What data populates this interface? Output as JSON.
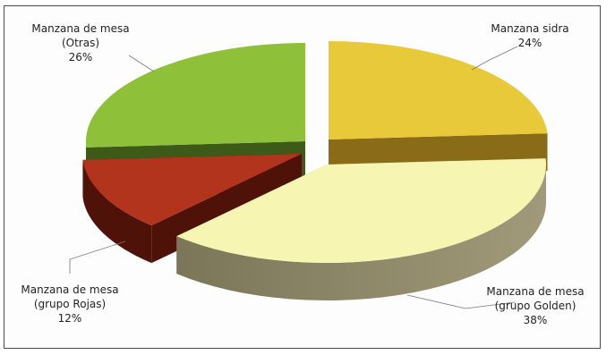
{
  "chart_data": {
    "type": "pie",
    "style": "3d-exploded",
    "slices": [
      {
        "label_lines": [
          "Manzana sidra",
          "24%"
        ],
        "value": 24,
        "color": "#e8c93a",
        "side_color": "#8a6c18"
      },
      {
        "label_lines": [
          "Manzana de mesa",
          "(grupo Golden)",
          "38%"
        ],
        "value": 38,
        "color": "#f7f5b2",
        "side_color": "#8d8768"
      },
      {
        "label_lines": [
          "Manzana de mesa",
          "(grupo Rojas)",
          "12%"
        ],
        "value": 12,
        "color": "#b3341c",
        "side_color": "#4e1208"
      },
      {
        "label_lines": [
          "Manzana de mesa",
          "(Otras)",
          "26%"
        ],
        "value": 26,
        "color": "#8fc03a",
        "side_color": "#3e5a18"
      }
    ]
  }
}
